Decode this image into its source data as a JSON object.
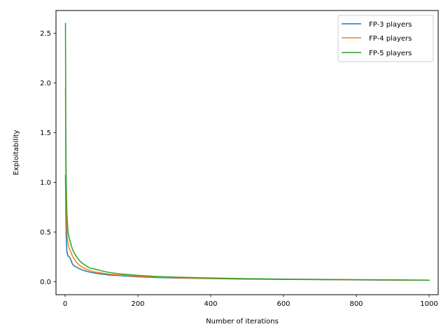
{
  "chart_data": {
    "type": "line",
    "xlabel": "Number of iterations",
    "ylabel": "Exploitability",
    "xlim": [
      -25,
      1025
    ],
    "ylim": [
      -0.13,
      2.73
    ],
    "xticks": [
      0,
      200,
      400,
      600,
      800,
      1000
    ],
    "xtick_labels": [
      "0",
      "200",
      "400",
      "600",
      "800",
      "1000"
    ],
    "yticks": [
      0.0,
      0.5,
      1.0,
      1.5,
      2.0,
      2.5
    ],
    "ytick_labels": [
      "0.0",
      "0.5",
      "1.0",
      "1.5",
      "2.0",
      "2.5"
    ],
    "grid": false,
    "legend_position": "top-right",
    "series": [
      {
        "name": "FP-3 players",
        "color": "#1f77b4",
        "x": [
          1,
          2,
          3,
          5,
          8,
          12,
          16,
          20,
          25,
          30,
          40,
          50,
          60,
          70,
          80,
          100,
          120,
          150,
          200,
          250,
          300,
          400,
          500,
          600,
          700,
          800,
          900,
          1000
        ],
        "y": [
          1.07,
          0.7,
          0.45,
          0.3,
          0.26,
          0.25,
          0.22,
          0.18,
          0.16,
          0.15,
          0.13,
          0.115,
          0.105,
          0.095,
          0.088,
          0.078,
          0.068,
          0.062,
          0.05,
          0.043,
          0.038,
          0.032,
          0.027,
          0.024,
          0.021,
          0.019,
          0.017,
          0.015
        ]
      },
      {
        "name": "FP-4 players",
        "color": "#ff7f0e",
        "x": [
          1,
          2,
          3,
          5,
          8,
          12,
          16,
          20,
          25,
          30,
          40,
          50,
          60,
          70,
          80,
          100,
          120,
          150,
          200,
          250,
          300,
          400,
          500,
          600,
          700,
          800,
          900,
          1000
        ],
        "y": [
          1.95,
          1.1,
          0.75,
          0.5,
          0.38,
          0.33,
          0.3,
          0.26,
          0.23,
          0.2,
          0.165,
          0.14,
          0.125,
          0.11,
          0.1,
          0.088,
          0.078,
          0.068,
          0.055,
          0.047,
          0.041,
          0.034,
          0.029,
          0.025,
          0.022,
          0.02,
          0.018,
          0.016
        ]
      },
      {
        "name": "FP-5 players",
        "color": "#2ca02c",
        "x": [
          1,
          2,
          3,
          5,
          8,
          12,
          16,
          20,
          25,
          30,
          40,
          50,
          60,
          70,
          80,
          100,
          120,
          150,
          200,
          250,
          300,
          400,
          500,
          600,
          700,
          800,
          900,
          1000
        ],
        "y": [
          2.6,
          1.5,
          1.0,
          0.68,
          0.5,
          0.43,
          0.38,
          0.33,
          0.29,
          0.26,
          0.21,
          0.18,
          0.155,
          0.135,
          0.13,
          0.11,
          0.095,
          0.08,
          0.065,
          0.053,
          0.047,
          0.038,
          0.031,
          0.027,
          0.024,
          0.021,
          0.019,
          0.016
        ]
      }
    ]
  }
}
